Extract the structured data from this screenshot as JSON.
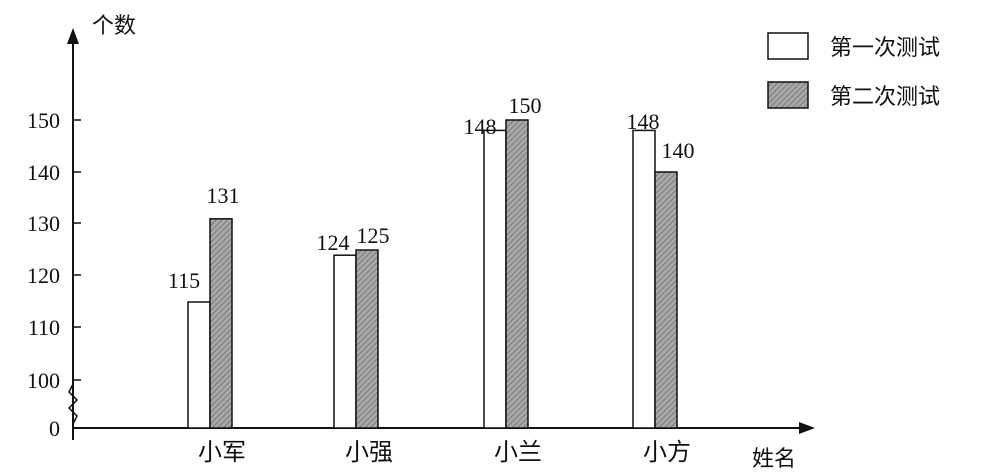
{
  "chart_data": {
    "type": "bar",
    "title": "",
    "xlabel": "姓名",
    "ylabel": "个数",
    "categories": [
      "小军",
      "小强",
      "小兰",
      "小方"
    ],
    "series": [
      {
        "name": "第一次测试",
        "values": [
          115,
          124,
          148,
          148
        ],
        "labels": [
          "115",
          "124",
          "148",
          "148"
        ]
      },
      {
        "name": "第二次测试",
        "values": [
          131,
          125,
          150,
          140
        ],
        "labels": [
          "131",
          "125",
          "150",
          "140"
        ]
      }
    ],
    "y_ticks": [
      "0",
      "100",
      "110",
      "120",
      "130",
      "140",
      "150"
    ],
    "ylim": [
      100,
      150
    ],
    "axis_break": true,
    "grid": false,
    "legend_position": "top-right",
    "colors": {
      "series1_fill": "#ffffff",
      "series2_fill": "#9a9a9a",
      "axis": "#111111"
    }
  }
}
